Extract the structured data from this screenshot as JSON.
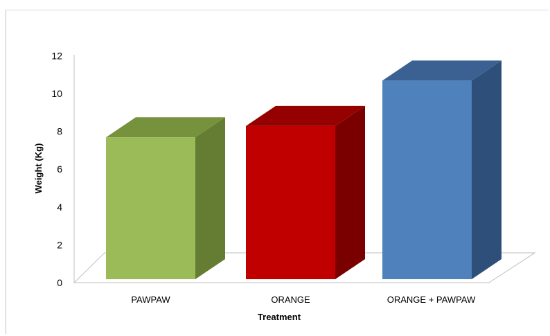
{
  "chart_data": {
    "type": "bar",
    "style": "3d-column",
    "title": "",
    "xlabel": "Treatment",
    "ylabel": "Weight (Kg)",
    "ylim": [
      0,
      12
    ],
    "yticks": [
      "0",
      "2",
      "4",
      "6",
      "8",
      "10",
      "12"
    ],
    "categories": [
      "PAWPAW",
      "ORANGE",
      "ORANGE + PAWPAW"
    ],
    "values": [
      7.5,
      8.1,
      10.5
    ],
    "grid": false,
    "legend": "none",
    "colors": {
      "PAWPAW": {
        "front": "#9bbb59",
        "top": "#76923c",
        "side": "#647d33"
      },
      "ORANGE": {
        "front": "#c00000",
        "top": "#950000",
        "side": "#7a0000"
      },
      "ORANGE + PAWPAW": {
        "front": "#4f81bd",
        "top": "#3b6192",
        "side": "#2f4f7b"
      }
    }
  }
}
